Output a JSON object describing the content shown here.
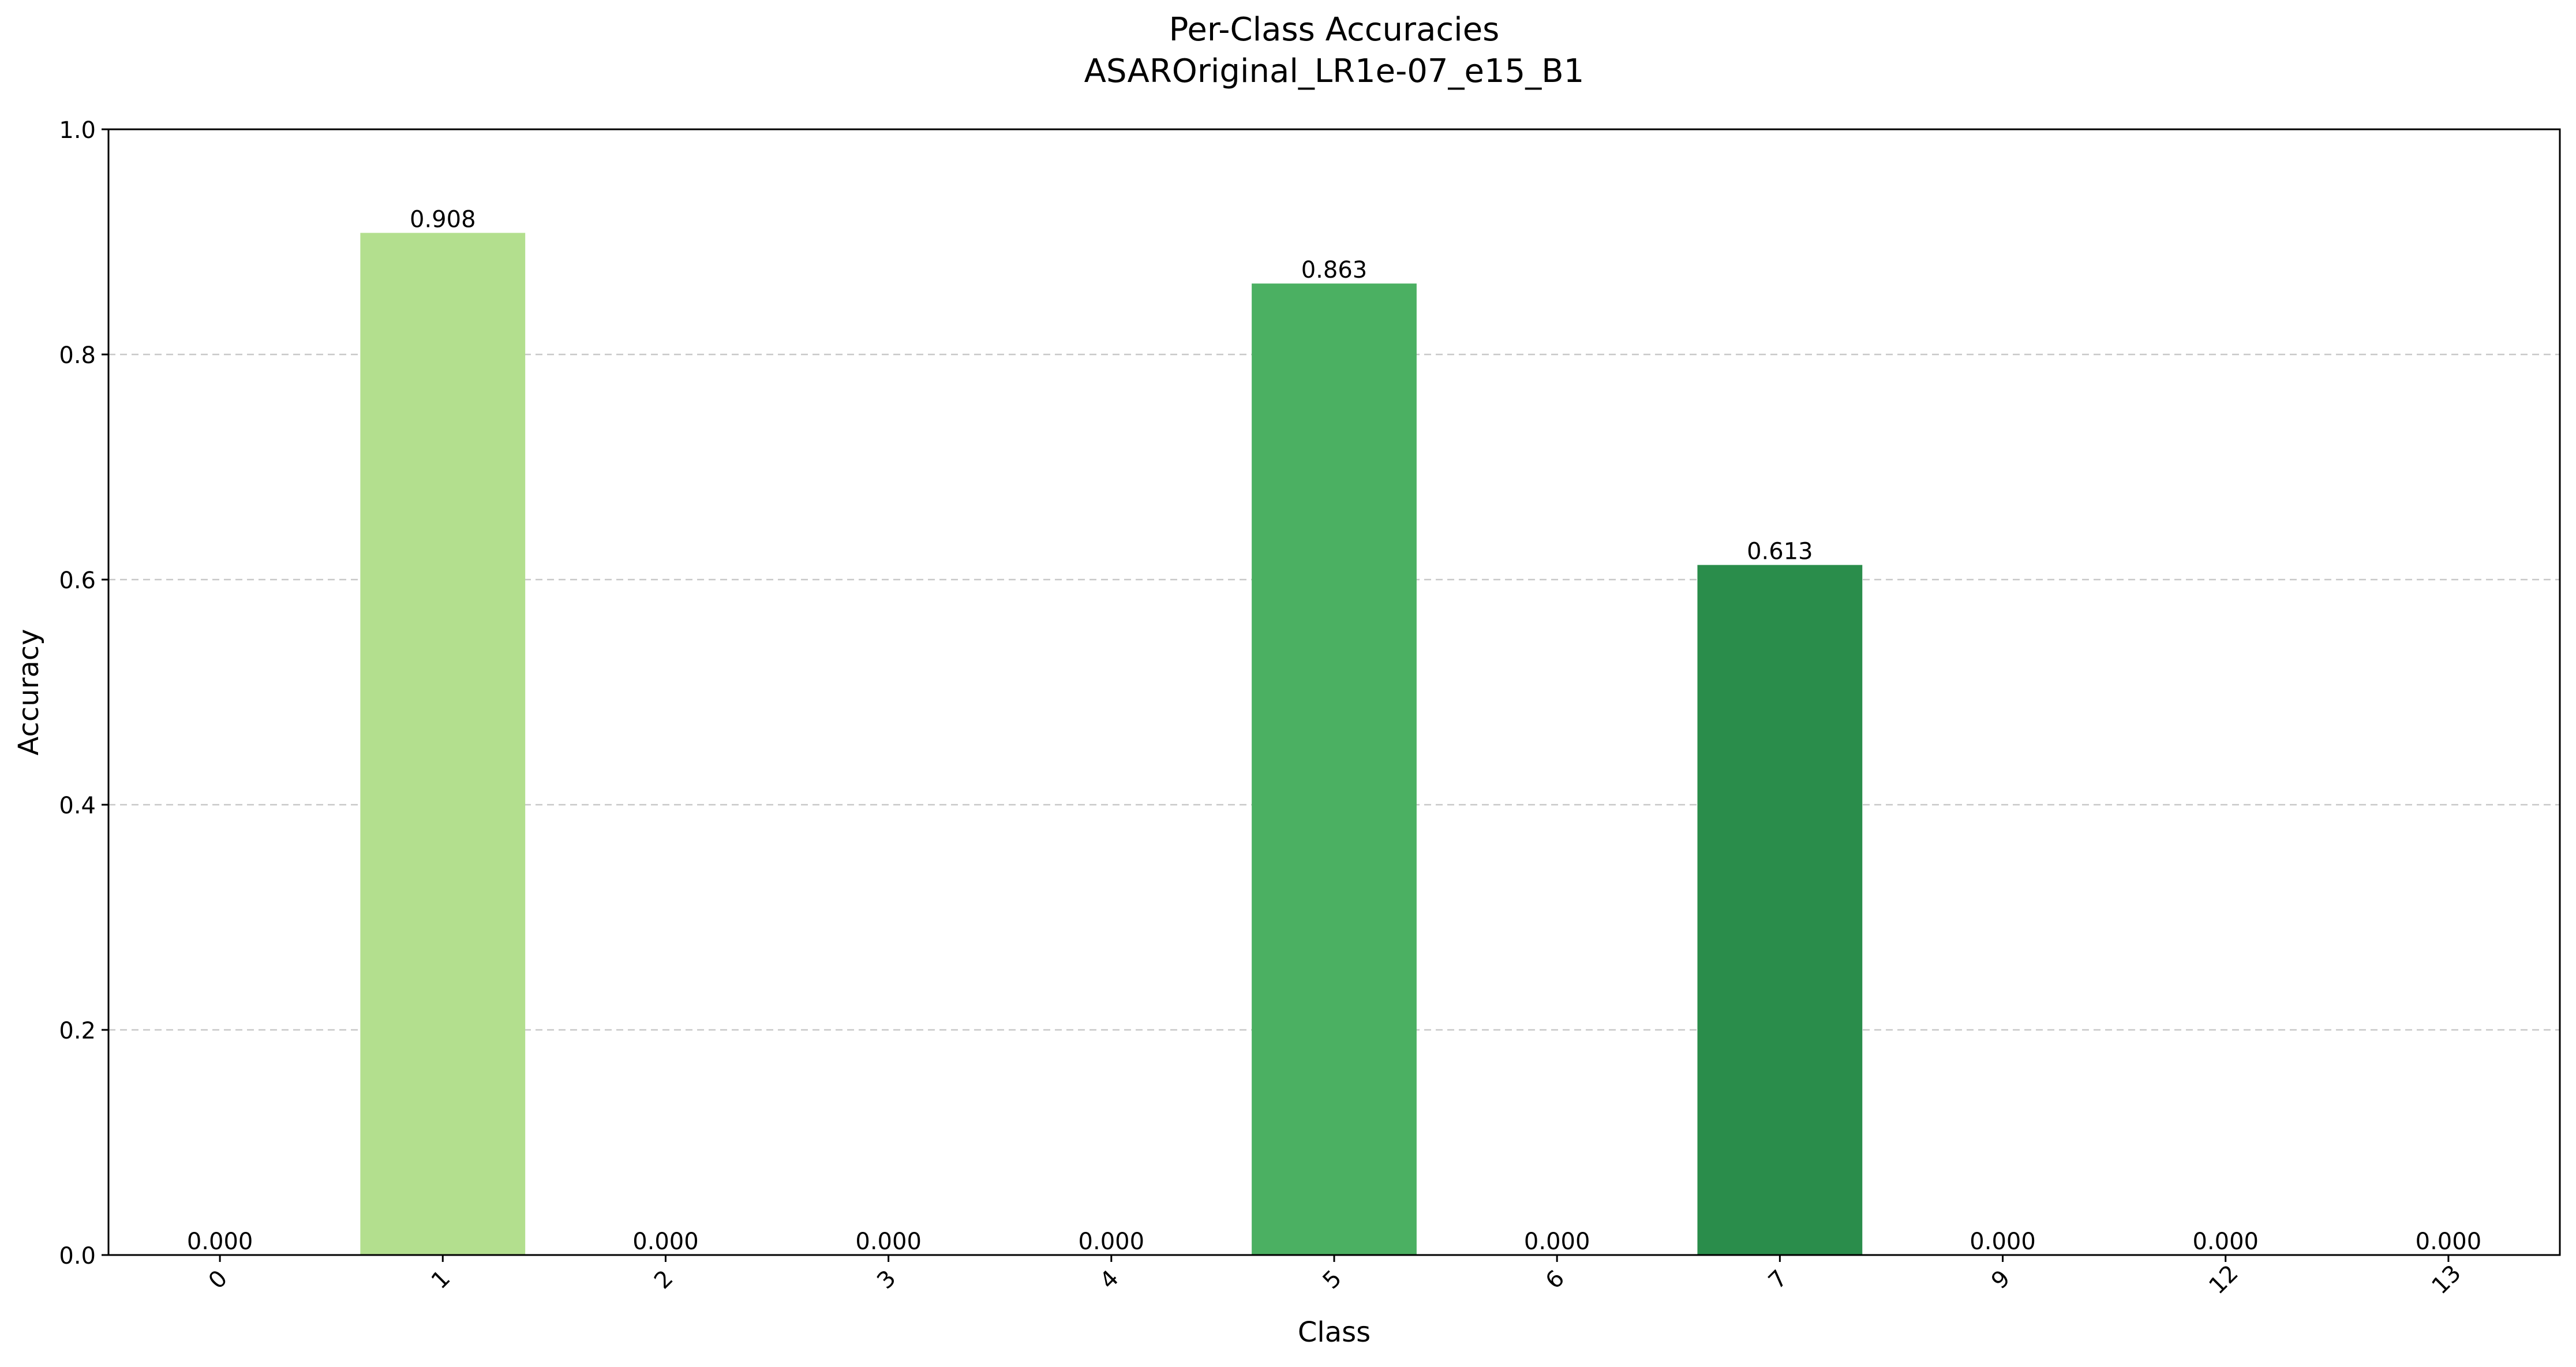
{
  "chart_data": {
    "type": "bar",
    "title": "Per-Class Accuracies",
    "subtitle": "ASAROriginal_LR1e-07_e15_B1",
    "xlabel": "Class",
    "ylabel": "Accuracy",
    "categories": [
      "0",
      "1",
      "2",
      "3",
      "4",
      "5",
      "6",
      "7",
      "9",
      "12",
      "13"
    ],
    "values": [
      0.0,
      0.908,
      0.0,
      0.0,
      0.0,
      0.863,
      0.0,
      0.613,
      0.0,
      0.0,
      0.0
    ],
    "value_labels": [
      "0.000",
      "0.908",
      "0.000",
      "0.000",
      "0.000",
      "0.863",
      "0.000",
      "0.613",
      "0.000",
      "0.000",
      "0.000"
    ],
    "ylim": [
      0,
      1.0
    ],
    "yticks": [
      0.0,
      0.2,
      0.4,
      0.6,
      0.8,
      1.0
    ],
    "ytick_labels": [
      "0.0",
      "0.2",
      "0.4",
      "0.6",
      "0.8",
      "1.0"
    ],
    "grid": "y-dashed",
    "legend": "none",
    "bar_colors": [
      "#f7fcb9",
      "#b3df8e",
      "#b3df8e",
      "#b3df8e",
      "#b3df8e",
      "#4bb062",
      "#4bb062",
      "#2a8d4b",
      "#2a8d4b",
      "#006837",
      "#006837"
    ]
  }
}
